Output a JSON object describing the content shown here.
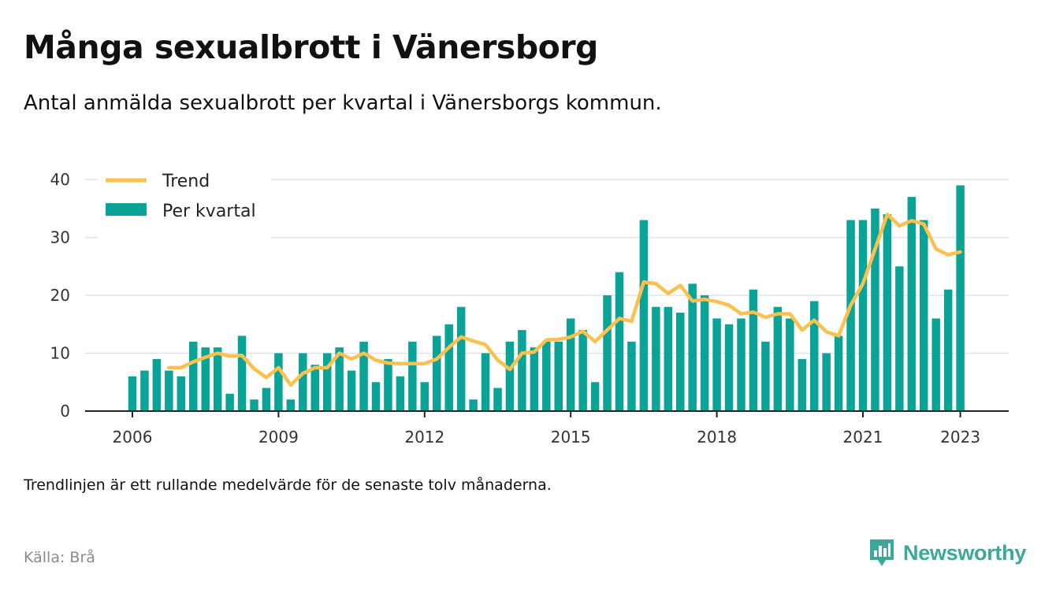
{
  "title": "Många sexualbrott i Vänersborg",
  "subtitle": "Antal anmälda sexualbrott per kvartal i Vänersborgs kommun.",
  "note": "Trendlinjen är ett rullande medelvärde för de senaste tolv månaderna.",
  "source": "Källa: Brå",
  "brand": {
    "name": "Newsworthy",
    "color": "#3aa89a",
    "icon": "newsworthy-logo-icon"
  },
  "colors": {
    "bar": "#0aa398",
    "trend": "#fcc04c",
    "grid": "#e3e3e3",
    "axis": "#222222"
  },
  "chart_data": {
    "type": "bar",
    "x_unit": "quarter",
    "x_start": "2006 Q1",
    "ylim": [
      0,
      40
    ],
    "yticks": [
      0,
      10,
      20,
      30,
      40
    ],
    "xticks": [
      "2006",
      "2009",
      "2012",
      "2015",
      "2018",
      "2021",
      "2023"
    ],
    "grid": true,
    "legend_position": "top-left",
    "series": [
      {
        "name": "Per kvartal",
        "type": "bar",
        "values": [
          6,
          7,
          9,
          7,
          6,
          12,
          11,
          11,
          3,
          13,
          2,
          4,
          10,
          2,
          10,
          8,
          10,
          11,
          7,
          12,
          5,
          9,
          6,
          12,
          5,
          13,
          15,
          18,
          2,
          10,
          4,
          12,
          14,
          11,
          12,
          12,
          16,
          14,
          5,
          20,
          24,
          12,
          33,
          18,
          18,
          17,
          22,
          20,
          16,
          15,
          16,
          21,
          12,
          18,
          16,
          9,
          19,
          10,
          13,
          33,
          33,
          35,
          34,
          25,
          37,
          33,
          16,
          21,
          39
        ]
      },
      {
        "name": "Trend",
        "type": "line",
        "start_index": 3,
        "values": [
          7.5,
          7.5,
          8.5,
          9.3,
          10,
          9.5,
          9.6,
          7.3,
          5.8,
          7.5,
          4.5,
          6.5,
          7.5,
          7.5,
          10,
          9,
          10,
          8.8,
          8.3,
          8.2,
          8.2,
          8.2,
          9,
          11,
          12.8,
          12.1,
          11.5,
          8.8,
          7.2,
          10,
          10.2,
          12.3,
          12.4,
          12.8,
          13.8,
          12,
          14,
          16,
          15.5,
          22.3,
          22,
          20.3,
          21.7,
          19,
          19.3,
          18.9,
          18.3,
          16.8,
          17.1,
          16.2,
          16.8,
          16.8,
          14,
          15.7,
          13.7,
          13,
          18.3,
          22,
          28,
          34,
          32,
          32.9,
          32.3,
          28,
          27,
          27.5
        ]
      }
    ]
  }
}
